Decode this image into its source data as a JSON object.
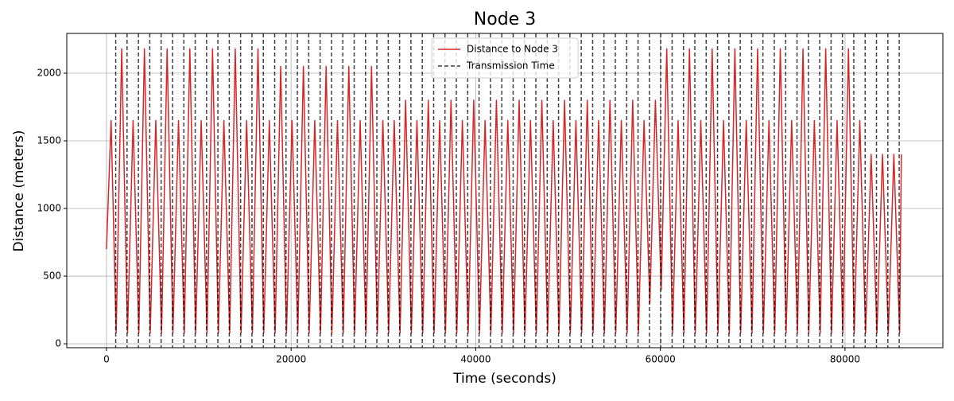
{
  "chart_data": {
    "type": "line",
    "title": "Node 3",
    "x_label": "Time (seconds)",
    "y_label": "Distance (meters)",
    "series": [
      {
        "name": "Distance to Node 3",
        "color": "#d62728",
        "x": [
          0,
          500,
          1050,
          1650,
          2280,
          2880,
          3510,
          4110,
          4740,
          5340,
          5970,
          6570,
          7200,
          7800,
          8430,
          9030,
          9660,
          10260,
          10890,
          11490,
          12120,
          12720,
          13350,
          13950,
          14580,
          15180,
          15810,
          16410,
          17040,
          17640,
          18270,
          18870,
          19500,
          20100,
          20730,
          21330,
          21960,
          22560,
          23190,
          23790,
          24420,
          25020,
          25650,
          26250,
          26880,
          27480,
          28110,
          28710,
          29340,
          29940,
          30570,
          31170,
          31800,
          32400,
          33030,
          33630,
          34260,
          34860,
          35490,
          36090,
          36720,
          37320,
          37950,
          38550,
          39180,
          39780,
          40410,
          41010,
          41640,
          42240,
          42870,
          43470,
          44100,
          44700,
          45330,
          45930,
          46560,
          47160,
          47790,
          48390,
          49020,
          49620,
          50250,
          50850,
          51480,
          52080,
          52710,
          53310,
          53940,
          54540,
          55170,
          55770,
          56400,
          57000,
          57630,
          58230,
          58860,
          59460,
          60090,
          60690,
          61320,
          61920,
          62550,
          63150,
          63780,
          64380,
          65010,
          65610,
          66240,
          66840,
          67470,
          68070,
          68700,
          69300,
          69930,
          70530,
          71160,
          71760,
          72390,
          72990,
          73620,
          74220,
          74850,
          75450,
          76080,
          76680,
          77310,
          77910,
          78540,
          79140,
          79770,
          80370,
          81000,
          81600,
          82230,
          82830,
          83460,
          84060,
          84690,
          85290,
          85920,
          86100
        ],
        "values": [
          700,
          1650,
          80,
          2180,
          80,
          1650,
          80,
          2180,
          80,
          1650,
          80,
          2180,
          80,
          1650,
          80,
          2180,
          80,
          1650,
          80,
          2180,
          80,
          1650,
          80,
          2180,
          80,
          1650,
          80,
          2180,
          80,
          1650,
          80,
          2050,
          80,
          1650,
          80,
          2050,
          80,
          1650,
          80,
          2050,
          80,
          1650,
          80,
          2050,
          80,
          1650,
          80,
          2050,
          80,
          1650,
          80,
          1650,
          80,
          1800,
          80,
          1650,
          80,
          1800,
          80,
          1650,
          80,
          1800,
          80,
          1650,
          80,
          1800,
          80,
          1650,
          80,
          1800,
          80,
          1650,
          80,
          1800,
          80,
          1650,
          80,
          1800,
          80,
          1650,
          80,
          1800,
          80,
          1650,
          80,
          1800,
          80,
          1650,
          80,
          1800,
          80,
          1650,
          80,
          1800,
          80,
          1650,
          300,
          1800,
          400,
          2180,
          80,
          1650,
          80,
          2180,
          80,
          1650,
          80,
          2180,
          80,
          1650,
          80,
          2180,
          80,
          1650,
          80,
          2180,
          80,
          1650,
          80,
          2180,
          80,
          1650,
          80,
          2180,
          80,
          1650,
          80,
          2180,
          80,
          1650,
          80,
          2180,
          80,
          1650,
          80,
          1400,
          80,
          1400,
          80,
          1400,
          80,
          1400
        ]
      }
    ],
    "vlines": {
      "name": "Transmission Time",
      "color": "#000000",
      "x": [
        1000,
        2230,
        3460,
        4690,
        5920,
        7150,
        8380,
        9610,
        10840,
        12070,
        13300,
        14530,
        15760,
        16990,
        18220,
        19450,
        20680,
        21910,
        23140,
        24370,
        25600,
        26830,
        28060,
        29290,
        30520,
        31750,
        32980,
        34210,
        35440,
        36670,
        37900,
        39130,
        40360,
        41590,
        42820,
        44050,
        45280,
        46510,
        47740,
        48970,
        50200,
        51430,
        52660,
        53890,
        55120,
        56350,
        57580,
        58810,
        60040,
        61270,
        62500,
        63730,
        64960,
        66190,
        67420,
        68650,
        69880,
        71110,
        72340,
        73570,
        74800,
        76030,
        77260,
        78490,
        79720,
        80950,
        82180,
        83410,
        84640,
        85870
      ]
    },
    "xlim": [
      -4300,
      90600
    ],
    "ylim": [
      -29,
      2294
    ],
    "xticks": [
      0,
      20000,
      40000,
      60000,
      80000
    ],
    "yticks": [
      0,
      500,
      1000,
      1500,
      2000
    ],
    "grid": true,
    "legend": "upper center"
  }
}
